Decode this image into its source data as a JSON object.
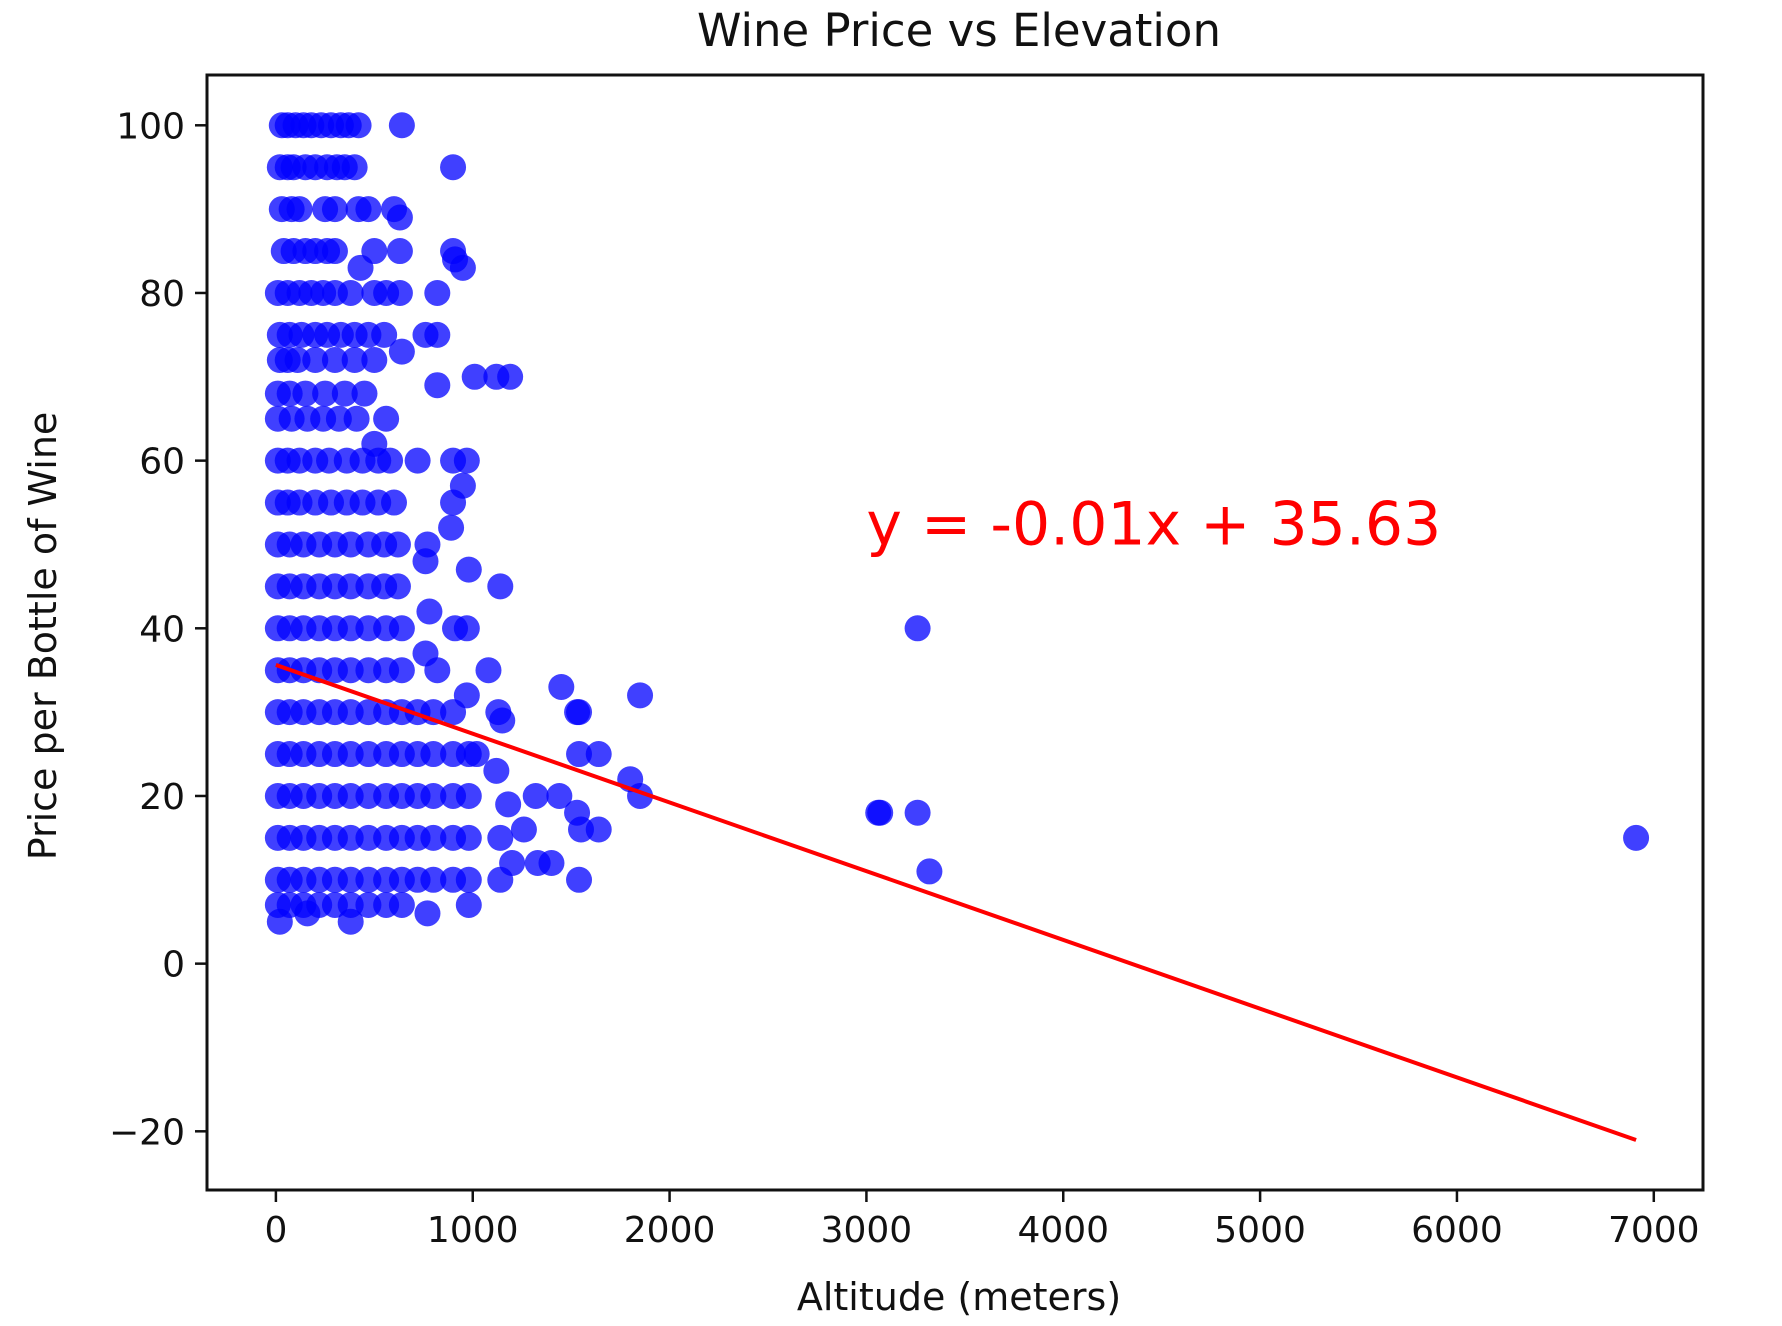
{
  "chart_data": {
    "type": "scatter",
    "title": "Wine Price vs Elevation",
    "xlabel": "Altitude (meters)",
    "ylabel": "Price per Bottle of Wine",
    "xlim": [
      -350,
      7250
    ],
    "ylim": [
      -27,
      106
    ],
    "xticks": [
      0,
      1000,
      2000,
      3000,
      4000,
      5000,
      6000,
      7000
    ],
    "xtick_labels": [
      "0",
      "1000",
      "2000",
      "3000",
      "4000",
      "5000",
      "6000",
      "7000"
    ],
    "yticks": [
      -20,
      0,
      20,
      40,
      60,
      80,
      100
    ],
    "ytick_labels": [
      "−20",
      "0",
      "20",
      "40",
      "60",
      "80",
      "100"
    ],
    "grid": false,
    "colors": {
      "points": "#0000ff",
      "line": "#ff0000",
      "annotation": "#ff0000"
    },
    "annotation": {
      "text": "y = -0.01x + 35.63",
      "x": 3000,
      "y": 50
    },
    "regression": {
      "slope": -0.0082,
      "intercept": 35.63,
      "x_range": [
        0,
        6910
      ]
    },
    "series": [
      {
        "points": [
          [
            30,
            100
          ],
          [
            60,
            100
          ],
          [
            100,
            100
          ],
          [
            140,
            100
          ],
          [
            180,
            100
          ],
          [
            230,
            100
          ],
          [
            280,
            100
          ],
          [
            330,
            100
          ],
          [
            370,
            100
          ],
          [
            420,
            100
          ],
          [
            640,
            100
          ],
          [
            20,
            95
          ],
          [
            60,
            95
          ],
          [
            90,
            95
          ],
          [
            150,
            95
          ],
          [
            200,
            95
          ],
          [
            260,
            95
          ],
          [
            310,
            95
          ],
          [
            350,
            95
          ],
          [
            400,
            95
          ],
          [
            900,
            95
          ],
          [
            30,
            90
          ],
          [
            80,
            90
          ],
          [
            120,
            90
          ],
          [
            250,
            90
          ],
          [
            300,
            90
          ],
          [
            420,
            90
          ],
          [
            470,
            90
          ],
          [
            600,
            90
          ],
          [
            630,
            89
          ],
          [
            40,
            85
          ],
          [
            90,
            85
          ],
          [
            150,
            85
          ],
          [
            200,
            85
          ],
          [
            260,
            85
          ],
          [
            300,
            85
          ],
          [
            500,
            85
          ],
          [
            630,
            85
          ],
          [
            900,
            85
          ],
          [
            910,
            84
          ],
          [
            950,
            83
          ],
          [
            10,
            80
          ],
          [
            60,
            80
          ],
          [
            120,
            80
          ],
          [
            180,
            80
          ],
          [
            240,
            80
          ],
          [
            300,
            80
          ],
          [
            380,
            80
          ],
          [
            430,
            83
          ],
          [
            500,
            80
          ],
          [
            560,
            80
          ],
          [
            630,
            80
          ],
          [
            820,
            80
          ],
          [
            20,
            75
          ],
          [
            70,
            75
          ],
          [
            130,
            75
          ],
          [
            200,
            75
          ],
          [
            260,
            75
          ],
          [
            330,
            75
          ],
          [
            400,
            75
          ],
          [
            470,
            75
          ],
          [
            550,
            75
          ],
          [
            760,
            75
          ],
          [
            820,
            75
          ],
          [
            20,
            72
          ],
          [
            60,
            72
          ],
          [
            110,
            72
          ],
          [
            200,
            72
          ],
          [
            300,
            72
          ],
          [
            400,
            72
          ],
          [
            500,
            72
          ],
          [
            640,
            73
          ],
          [
            820,
            69
          ],
          [
            1010,
            70
          ],
          [
            1120,
            70
          ],
          [
            1190,
            70
          ],
          [
            10,
            68
          ],
          [
            70,
            68
          ],
          [
            150,
            68
          ],
          [
            250,
            68
          ],
          [
            350,
            68
          ],
          [
            450,
            68
          ],
          [
            560,
            65
          ],
          [
            580,
            60
          ],
          [
            720,
            60
          ],
          [
            900,
            60
          ],
          [
            970,
            60
          ],
          [
            10,
            65
          ],
          [
            80,
            65
          ],
          [
            160,
            65
          ],
          [
            240,
            65
          ],
          [
            320,
            65
          ],
          [
            410,
            65
          ],
          [
            500,
            62
          ],
          [
            10,
            60
          ],
          [
            60,
            60
          ],
          [
            120,
            60
          ],
          [
            200,
            60
          ],
          [
            270,
            60
          ],
          [
            360,
            60
          ],
          [
            440,
            60
          ],
          [
            520,
            60
          ],
          [
            10,
            55
          ],
          [
            60,
            55
          ],
          [
            120,
            55
          ],
          [
            200,
            55
          ],
          [
            280,
            55
          ],
          [
            360,
            55
          ],
          [
            440,
            55
          ],
          [
            520,
            55
          ],
          [
            600,
            55
          ],
          [
            900,
            55
          ],
          [
            950,
            57
          ],
          [
            10,
            50
          ],
          [
            70,
            50
          ],
          [
            140,
            50
          ],
          [
            220,
            50
          ],
          [
            300,
            50
          ],
          [
            380,
            50
          ],
          [
            470,
            50
          ],
          [
            550,
            50
          ],
          [
            620,
            50
          ],
          [
            770,
            50
          ],
          [
            760,
            48
          ],
          [
            890,
            52
          ],
          [
            10,
            45
          ],
          [
            70,
            45
          ],
          [
            140,
            45
          ],
          [
            220,
            45
          ],
          [
            300,
            45
          ],
          [
            380,
            45
          ],
          [
            470,
            45
          ],
          [
            550,
            45
          ],
          [
            620,
            45
          ],
          [
            980,
            47
          ],
          [
            1140,
            45
          ],
          [
            10,
            40
          ],
          [
            70,
            40
          ],
          [
            140,
            40
          ],
          [
            220,
            40
          ],
          [
            300,
            40
          ],
          [
            380,
            40
          ],
          [
            470,
            40
          ],
          [
            560,
            40
          ],
          [
            640,
            40
          ],
          [
            780,
            42
          ],
          [
            910,
            40
          ],
          [
            970,
            40
          ],
          [
            10,
            35
          ],
          [
            70,
            35
          ],
          [
            140,
            35
          ],
          [
            220,
            35
          ],
          [
            300,
            35
          ],
          [
            380,
            35
          ],
          [
            470,
            35
          ],
          [
            560,
            35
          ],
          [
            640,
            35
          ],
          [
            760,
            37
          ],
          [
            820,
            35
          ],
          [
            1080,
            35
          ],
          [
            10,
            30
          ],
          [
            70,
            30
          ],
          [
            140,
            30
          ],
          [
            220,
            30
          ],
          [
            300,
            30
          ],
          [
            380,
            30
          ],
          [
            470,
            30
          ],
          [
            560,
            30
          ],
          [
            640,
            30
          ],
          [
            720,
            30
          ],
          [
            800,
            30
          ],
          [
            900,
            30
          ],
          [
            970,
            32
          ],
          [
            1130,
            30
          ],
          [
            1150,
            29
          ],
          [
            1450,
            33
          ],
          [
            1530,
            30
          ],
          [
            1540,
            30
          ],
          [
            10,
            25
          ],
          [
            70,
            25
          ],
          [
            140,
            25
          ],
          [
            220,
            25
          ],
          [
            300,
            25
          ],
          [
            380,
            25
          ],
          [
            470,
            25
          ],
          [
            560,
            25
          ],
          [
            640,
            25
          ],
          [
            720,
            25
          ],
          [
            800,
            25
          ],
          [
            900,
            25
          ],
          [
            980,
            25
          ],
          [
            1020,
            25
          ],
          [
            1540,
            25
          ],
          [
            1640,
            25
          ],
          [
            10,
            20
          ],
          [
            70,
            20
          ],
          [
            140,
            20
          ],
          [
            220,
            20
          ],
          [
            300,
            20
          ],
          [
            380,
            20
          ],
          [
            470,
            20
          ],
          [
            560,
            20
          ],
          [
            640,
            20
          ],
          [
            720,
            20
          ],
          [
            800,
            20
          ],
          [
            900,
            20
          ],
          [
            980,
            20
          ],
          [
            1120,
            23
          ],
          [
            1180,
            19
          ],
          [
            1320,
            20
          ],
          [
            1440,
            20
          ],
          [
            1800,
            22
          ],
          [
            1850,
            20
          ],
          [
            10,
            15
          ],
          [
            70,
            15
          ],
          [
            140,
            15
          ],
          [
            220,
            15
          ],
          [
            300,
            15
          ],
          [
            380,
            15
          ],
          [
            470,
            15
          ],
          [
            560,
            15
          ],
          [
            640,
            15
          ],
          [
            720,
            15
          ],
          [
            800,
            15
          ],
          [
            900,
            15
          ],
          [
            980,
            15
          ],
          [
            1140,
            15
          ],
          [
            1260,
            16
          ],
          [
            1530,
            18
          ],
          [
            1550,
            16
          ],
          [
            1640,
            16
          ],
          [
            10,
            10
          ],
          [
            70,
            10
          ],
          [
            140,
            10
          ],
          [
            220,
            10
          ],
          [
            300,
            10
          ],
          [
            380,
            10
          ],
          [
            470,
            10
          ],
          [
            560,
            10
          ],
          [
            640,
            10
          ],
          [
            720,
            10
          ],
          [
            800,
            10
          ],
          [
            900,
            10
          ],
          [
            980,
            10
          ],
          [
            1140,
            10
          ],
          [
            1200,
            12
          ],
          [
            1330,
            12
          ],
          [
            1400,
            12
          ],
          [
            1540,
            10
          ],
          [
            10,
            7
          ],
          [
            70,
            7
          ],
          [
            140,
            7
          ],
          [
            220,
            7
          ],
          [
            300,
            7
          ],
          [
            380,
            7
          ],
          [
            470,
            7
          ],
          [
            560,
            7
          ],
          [
            640,
            7
          ],
          [
            770,
            6
          ],
          [
            980,
            7
          ],
          [
            20,
            5
          ],
          [
            160,
            6
          ],
          [
            380,
            5
          ],
          [
            1850,
            32
          ],
          [
            3260,
            40
          ],
          [
            3060,
            18
          ],
          [
            3070,
            18
          ],
          [
            3260,
            18
          ],
          [
            3320,
            11
          ],
          [
            6910,
            15
          ]
        ]
      }
    ]
  }
}
